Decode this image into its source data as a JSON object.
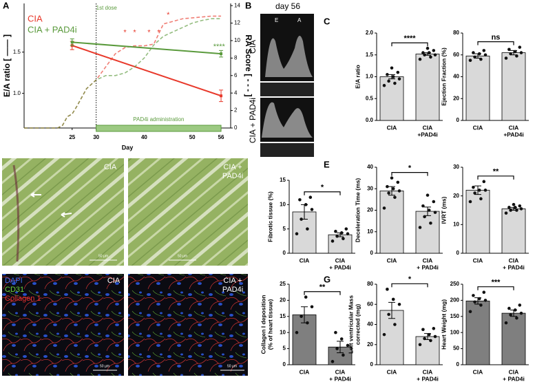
{
  "panel_labels": [
    "A",
    "B",
    "C",
    "D",
    "E",
    "F",
    "G"
  ],
  "images": {
    "B": {
      "title": "day 56",
      "rows": [
        "CIA",
        "CIA + PAD4i"
      ],
      "peaks": [
        "E",
        "A"
      ]
    },
    "D": {
      "labels": [
        [
          "CIA"
        ],
        [
          "CIA +",
          "PAD4i"
        ]
      ],
      "scale": "50 µm"
    },
    "F": {
      "stains": [
        "DAPI",
        "CD31",
        "Collagen 1"
      ],
      "labels": [
        [
          "CIA"
        ],
        [
          "CIA +",
          "PAD4i"
        ]
      ],
      "scale": "50 µm"
    }
  },
  "chart_data": [
    {
      "type": "line",
      "xlabel": "Day",
      "ylabel": "E/A ratio  [ —— ]",
      "y2label": "RA Score  [ - - - ]",
      "xlim": [
        15,
        58
      ],
      "xticks": [
        25,
        30,
        40,
        50,
        56
      ],
      "ylim": [
        0.58,
        2.09
      ],
      "yticks": [
        {
          "value": 1,
          "label": "1.0"
        },
        {
          "value": 1.5,
          "label": "1.5"
        }
      ],
      "y2lim": [
        0,
        14.25
      ],
      "y2ticks": [
        0,
        2,
        4,
        6,
        8,
        10,
        12,
        14
      ],
      "first_dose": {
        "label": "1st dose",
        "day": 30
      },
      "administration": {
        "label": "PAD4i administration",
        "start": 30,
        "end": 56
      },
      "series": [
        {
          "name": "CIA",
          "color": "#e8392b",
          "x": [
            25,
            56
          ],
          "values": [
            1.58,
            0.97
          ],
          "errors": [
            0.05,
            0.07
          ],
          "ra_x": [
            15,
            22,
            23,
            24,
            25,
            26,
            28,
            30,
            32,
            34,
            36,
            38,
            40,
            42,
            44,
            46,
            48,
            50,
            52,
            54,
            56
          ],
          "ra_values": [
            0,
            0,
            0.3,
            1.3,
            1.6,
            2.5,
            4.5,
            5.5,
            7,
            8.5,
            9.2,
            9.4,
            9.4,
            9.6,
            11.9,
            12.2,
            12.5,
            12.6,
            12.7,
            12.8,
            12.8
          ]
        },
        {
          "name": "CIA + PAD4i",
          "color": "#5a9a3c",
          "x": [
            25,
            56
          ],
          "values": [
            1.62,
            1.48
          ],
          "errors": [
            0.04,
            0.04
          ],
          "ra_x": [
            15,
            22,
            23,
            24,
            25,
            26,
            28,
            30,
            32,
            34,
            36,
            38,
            40,
            42,
            44,
            46,
            48,
            50,
            52,
            54,
            56
          ],
          "ra_values": [
            0,
            0,
            0.3,
            1.3,
            1.6,
            2.5,
            4.5,
            5.5,
            6,
            6,
            6.3,
            7,
            8,
            9.5,
            10.5,
            11,
            11.5,
            12,
            12.3,
            12.5,
            12.5
          ]
        }
      ],
      "annotations": [
        {
          "text": "*",
          "x": 36,
          "y2": 10.9
        },
        {
          "text": "*",
          "x": 38,
          "y2": 10.9
        },
        {
          "text": "*",
          "x": 41,
          "y2": 10.9
        },
        {
          "text": "*",
          "x": 43,
          "y2": 10.9
        },
        {
          "text": "*",
          "x": 45,
          "y2": 12.9
        },
        {
          "text": "****",
          "x": 55.6,
          "y2": 9.3
        }
      ]
    },
    {
      "type": "bar",
      "ylabel": [
        "E/A ratio"
      ],
      "categories": [
        [
          "CIA"
        ],
        [
          "CIA",
          "+PAD4i"
        ]
      ],
      "color": "#d9d9d9",
      "values": [
        1.0,
        1.52
      ],
      "errors": [
        0.05,
        0.03
      ],
      "points": [
        [
          0.8,
          0.85,
          0.9,
          0.95,
          1.0,
          1.05,
          1.1,
          1.2
        ],
        [
          1.4,
          1.45,
          1.5,
          1.5,
          1.55,
          1.55,
          1.6,
          1.65
        ]
      ],
      "ylim": [
        0,
        2
      ],
      "yticks": [
        {
          "value": 0,
          "label": "0.0"
        },
        {
          "value": 0.5,
          "label": "0.5"
        },
        {
          "value": 1,
          "label": "1.0"
        },
        {
          "value": 1.5,
          "label": "1.5"
        },
        {
          "value": 2,
          "label": "2.0"
        }
      ],
      "significance": "****"
    },
    {
      "type": "bar",
      "ylabel": [
        "Ejection Fraction (%)"
      ],
      "categories": [
        [
          "CIA"
        ],
        [
          "CIA",
          "+PAD4i"
        ]
      ],
      "color": "#d9d9d9",
      "values": [
        59,
        62
      ],
      "errors": [
        2,
        2
      ],
      "points": [
        [
          55,
          56,
          58,
          60,
          61,
          62,
          64
        ],
        [
          57,
          59,
          61,
          62,
          63,
          65,
          67
        ]
      ],
      "ylim": [
        0,
        80
      ],
      "yticks": [
        0,
        20,
        40,
        60,
        80
      ],
      "significance": "ns"
    },
    {
      "type": "bar",
      "ylabel": [
        "Fibrotic tissue (%)"
      ],
      "categories": [
        [
          "CIA"
        ],
        [
          "CIA",
          "+ PAD4i"
        ]
      ],
      "color": "#d9d9d9",
      "values": [
        8.5,
        3.8
      ],
      "errors": [
        1.5,
        0.4
      ],
      "points": [
        [
          4,
          5,
          7,
          9,
          10,
          11,
          11.5
        ],
        [
          2.5,
          3,
          3.5,
          4,
          4.2,
          4.5,
          5
        ]
      ],
      "ylim": [
        0,
        15
      ],
      "yticks": [
        0,
        5,
        10,
        15
      ],
      "significance": "*"
    },
    {
      "type": "bar",
      "ylabel": [
        "Deceleration Time (ms)"
      ],
      "categories": [
        [
          "CIA"
        ],
        [
          "CIA",
          "+ PAD4i"
        ]
      ],
      "color": "#d9d9d9",
      "values": [
        29,
        19.5
      ],
      "errors": [
        2,
        2
      ],
      "points": [
        [
          21,
          26,
          28,
          29,
          30,
          31,
          33,
          35
        ],
        [
          12,
          14,
          17,
          19,
          20,
          22,
          24,
          27
        ]
      ],
      "ylim": [
        0,
        40
      ],
      "yticks": [
        0,
        10,
        20,
        30,
        40
      ],
      "significance": "*"
    },
    {
      "type": "bar",
      "ylabel": [
        "IVRT (ms)"
      ],
      "categories": [
        [
          "CIA"
        ],
        [
          "CIA",
          "+ PAD4i"
        ]
      ],
      "color": "#d9d9d9",
      "values": [
        22,
        15.5
      ],
      "errors": [
        1.5,
        0.5
      ],
      "points": [
        [
          18,
          19,
          21,
          22,
          22,
          23,
          25
        ],
        [
          14,
          15,
          15,
          15.5,
          16,
          16,
          16.5,
          17
        ]
      ],
      "ylim": [
        0,
        30
      ],
      "yticks": [
        0,
        10,
        20,
        30
      ],
      "significance": "**"
    },
    {
      "type": "bar",
      "ylabel": [
        "Collagen I deposition",
        "(% of heart tissue)"
      ],
      "categories": [
        [
          "CIA"
        ],
        [
          "CIA",
          "+ PAD4i"
        ]
      ],
      "color": "#7f7f7f",
      "values": [
        15.5,
        5.5
      ],
      "errors": [
        2.5,
        1.8
      ],
      "points": [
        [
          10,
          13,
          15,
          18,
          21
        ],
        [
          1,
          3,
          5,
          6,
          8,
          10
        ]
      ],
      "ylim": [
        0,
        25
      ],
      "yticks": [
        0,
        5,
        10,
        15,
        20,
        25
      ],
      "significance": "**"
    },
    {
      "type": "bar",
      "ylabel": [
        "Left ventricular Mass",
        "corrected (mg)"
      ],
      "categories": [
        [
          "CIA"
        ],
        [
          "CIA",
          "+ PAD4i"
        ]
      ],
      "color": "#d9d9d9",
      "values": [
        54,
        28
      ],
      "errors": [
        8,
        3
      ],
      "points": [
        [
          30,
          40,
          50,
          60,
          65,
          75
        ],
        [
          20,
          24,
          26,
          28,
          30,
          35,
          36
        ]
      ],
      "ylim": [
        0,
        80
      ],
      "yticks": [
        0,
        20,
        40,
        60,
        80
      ],
      "significance": "*"
    },
    {
      "type": "bar",
      "ylabel": [
        "Heart Weight (mg)"
      ],
      "categories": [
        [
          "CIA"
        ],
        [
          "CIA",
          "+ PAD4i"
        ]
      ],
      "color": "#7f7f7f",
      "values": [
        198,
        160
      ],
      "errors": [
        10,
        10
      ],
      "points": [
        [
          165,
          185,
          195,
          200,
          205,
          215,
          225
        ],
        [
          130,
          145,
          155,
          160,
          170,
          175,
          185
        ]
      ],
      "ylim": [
        0,
        250
      ],
      "yticks": [
        0,
        50,
        100,
        150,
        200,
        250
      ],
      "significance": "***"
    }
  ]
}
